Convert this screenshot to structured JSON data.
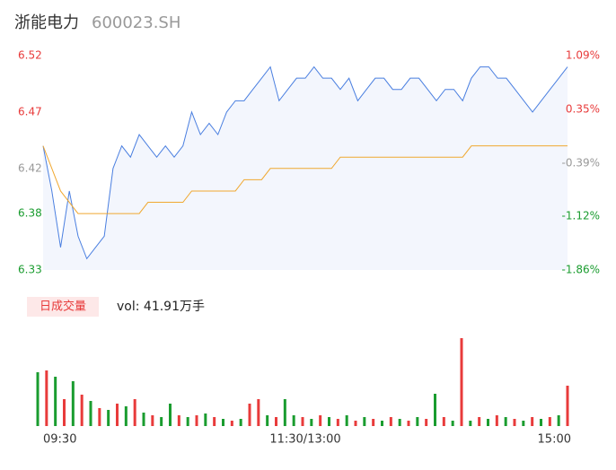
{
  "chart_data": [
    {
      "type": "line",
      "title": "浙能电力",
      "subtitle": "600023.SH",
      "x": [
        0,
        4,
        8,
        12,
        16,
        20,
        24,
        28,
        32,
        36,
        40,
        44,
        48,
        52,
        56,
        60,
        64,
        68,
        72,
        76,
        80,
        84,
        88,
        92,
        96,
        100,
        104,
        108,
        112,
        116,
        120,
        124,
        128,
        132,
        136,
        140,
        144,
        148,
        152,
        156,
        160,
        164,
        168,
        172,
        176,
        180,
        184,
        188,
        192,
        196,
        200,
        204,
        208,
        212,
        216,
        220,
        224,
        228,
        232,
        236,
        240
      ],
      "xlim": [
        0,
        240
      ],
      "xticks": [
        {
          "value": 0,
          "label": "09:30"
        },
        {
          "value": 120,
          "label": "11:30/13:00"
        },
        {
          "value": 240,
          "label": "15:00"
        }
      ],
      "ylim": [
        6.33,
        6.52
      ],
      "yticks": [
        6.52,
        6.47,
        6.42,
        6.38,
        6.33
      ],
      "y2lim": [
        -1.86,
        1.09
      ],
      "y2ticks": [
        {
          "value": 1.09,
          "label": "1.09%"
        },
        {
          "value": 0.35,
          "label": "0.35%"
        },
        {
          "value": -0.39,
          "label": "-0.39%"
        },
        {
          "value": -1.12,
          "label": "-1.12%"
        },
        {
          "value": -1.86,
          "label": "-1.86%"
        }
      ],
      "tick_colors": [
        "#e83b3b",
        "#e83b3b",
        "#999999",
        "#1a9c2f",
        "#1a9c2f"
      ],
      "series": [
        {
          "name": "price",
          "color": "#4a7fe0",
          "values": [
            6.44,
            6.4,
            6.35,
            6.4,
            6.36,
            6.34,
            6.35,
            6.36,
            6.42,
            6.44,
            6.43,
            6.45,
            6.44,
            6.43,
            6.44,
            6.43,
            6.44,
            6.47,
            6.45,
            6.46,
            6.45,
            6.47,
            6.48,
            6.48,
            6.49,
            6.5,
            6.51,
            6.48,
            6.49,
            6.5,
            6.5,
            6.51,
            6.5,
            6.5,
            6.49,
            6.5,
            6.48,
            6.49,
            6.5,
            6.5,
            6.49,
            6.49,
            6.5,
            6.5,
            6.49,
            6.48,
            6.49,
            6.49,
            6.48,
            6.5,
            6.51,
            6.51,
            6.5,
            6.5,
            6.49,
            6.48,
            6.47,
            6.48,
            6.49,
            6.5,
            6.51
          ]
        },
        {
          "name": "average",
          "color": "#f0a830",
          "values": [
            6.44,
            6.42,
            6.4,
            6.39,
            6.38,
            6.38,
            6.38,
            6.38,
            6.38,
            6.38,
            6.38,
            6.38,
            6.39,
            6.39,
            6.39,
            6.39,
            6.39,
            6.4,
            6.4,
            6.4,
            6.4,
            6.4,
            6.4,
            6.41,
            6.41,
            6.41,
            6.42,
            6.42,
            6.42,
            6.42,
            6.42,
            6.42,
            6.42,
            6.42,
            6.43,
            6.43,
            6.43,
            6.43,
            6.43,
            6.43,
            6.43,
            6.43,
            6.43,
            6.43,
            6.43,
            6.43,
            6.43,
            6.43,
            6.43,
            6.44,
            6.44,
            6.44,
            6.44,
            6.44,
            6.44,
            6.44,
            6.44,
            6.44,
            6.44,
            6.44,
            6.44
          ]
        }
      ]
    },
    {
      "type": "bar",
      "legend_label": "日成交量",
      "annotation": "vol: 41.91万手",
      "x": [
        0,
        4,
        8,
        12,
        16,
        20,
        24,
        28,
        32,
        36,
        40,
        44,
        48,
        52,
        56,
        60,
        64,
        68,
        72,
        76,
        80,
        84,
        88,
        92,
        96,
        100,
        104,
        108,
        112,
        116,
        120,
        124,
        128,
        132,
        136,
        140,
        144,
        148,
        152,
        156,
        160,
        164,
        168,
        172,
        176,
        180,
        184,
        188,
        192,
        196,
        200,
        204,
        208,
        212,
        216,
        220,
        224,
        228,
        232,
        236,
        240
      ],
      "xlim": [
        0,
        240
      ],
      "ylim": [
        0,
        100
      ],
      "series": [
        {
          "name": "up",
          "color": "#e83b3b",
          "values": [
            null,
            62,
            null,
            30,
            null,
            35,
            null,
            20,
            null,
            25,
            null,
            30,
            null,
            12,
            null,
            null,
            12,
            null,
            12,
            null,
            10,
            null,
            6,
            null,
            25,
            30,
            null,
            10,
            null,
            null,
            10,
            null,
            12,
            null,
            8,
            null,
            6,
            null,
            8,
            null,
            10,
            null,
            6,
            null,
            8,
            null,
            10,
            null,
            98,
            null,
            10,
            null,
            12,
            null,
            8,
            null,
            10,
            null,
            10,
            null,
            45
          ]
        },
        {
          "name": "down",
          "color": "#1a9c2f",
          "values": [
            60,
            null,
            55,
            null,
            50,
            null,
            28,
            null,
            18,
            null,
            22,
            null,
            15,
            null,
            10,
            25,
            null,
            10,
            null,
            14,
            null,
            8,
            null,
            8,
            null,
            null,
            12,
            null,
            30,
            12,
            null,
            8,
            null,
            10,
            null,
            12,
            null,
            10,
            null,
            6,
            null,
            8,
            null,
            10,
            null,
            36,
            null,
            6,
            null,
            6,
            null,
            8,
            null,
            10,
            null,
            6,
            null,
            8,
            null,
            12,
            null
          ]
        }
      ]
    }
  ]
}
